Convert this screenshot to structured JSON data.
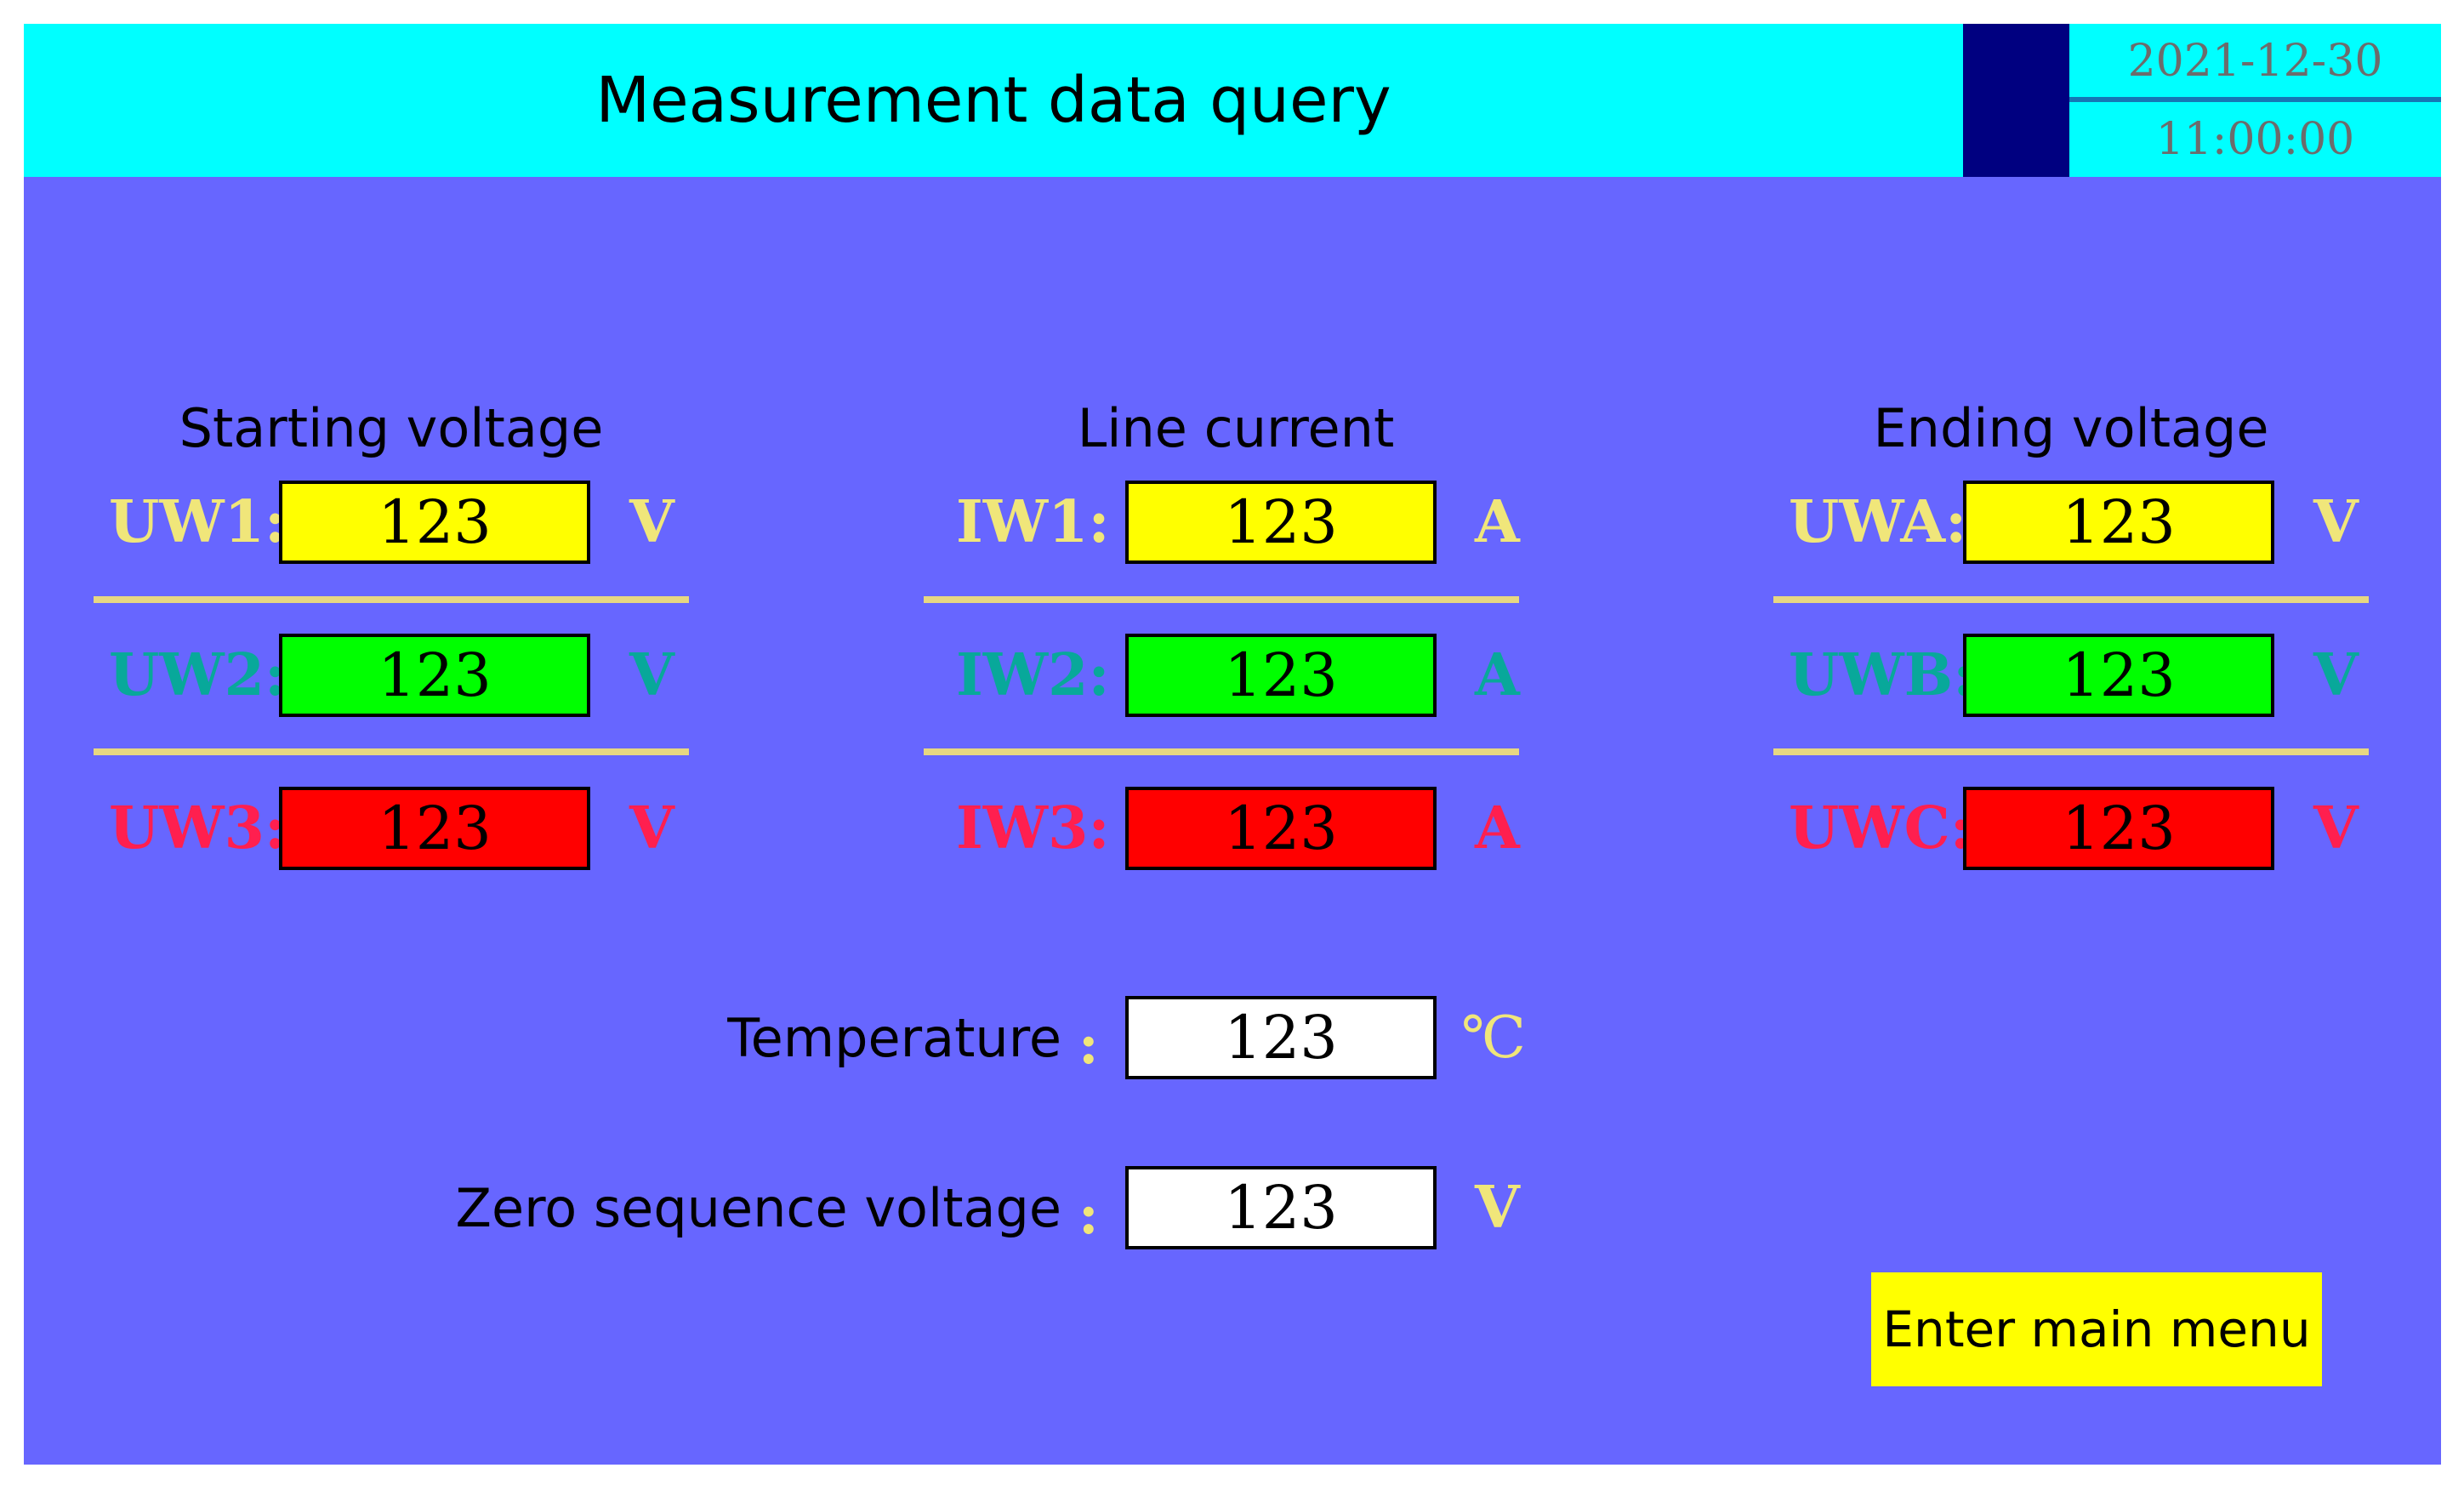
{
  "header": {
    "title": "Measurement data query",
    "date": "2021-12-30",
    "time": "11:00:00"
  },
  "groups": [
    {
      "title": "Starting voltage",
      "rows": [
        {
          "label": "UW1:",
          "value": "123",
          "unit": "V",
          "color": "yellow"
        },
        {
          "label": "UW2:",
          "value": "123",
          "unit": "V",
          "color": "green"
        },
        {
          "label": "UW3:",
          "value": "123",
          "unit": "V",
          "color": "red"
        }
      ]
    },
    {
      "title": "Line current",
      "rows": [
        {
          "label": "IW1:",
          "value": "123",
          "unit": "A",
          "color": "yellow"
        },
        {
          "label": "IW2:",
          "value": "123",
          "unit": "A",
          "color": "green"
        },
        {
          "label": "IW3:",
          "value": "123",
          "unit": "A",
          "color": "red"
        }
      ]
    },
    {
      "title": "Ending voltage",
      "rows": [
        {
          "label": "UWA:",
          "value": "123",
          "unit": "V",
          "color": "yellow"
        },
        {
          "label": "UWB:",
          "value": "123",
          "unit": "V",
          "color": "green"
        },
        {
          "label": "UWC:",
          "value": "123",
          "unit": "V",
          "color": "red"
        }
      ]
    }
  ],
  "temperature": {
    "label": "Temperature",
    "separator": ":",
    "value": "123",
    "unit": "℃"
  },
  "zero_sequence": {
    "label": "Zero sequence voltage",
    "separator": ":",
    "value": "123",
    "unit": "V"
  },
  "main_menu_button": {
    "label": "Enter main menu"
  },
  "colors": {
    "background": "#6766ff",
    "header": "#00ffff",
    "yellow": "#ffff00",
    "green": "#00ff00",
    "red": "#ff0000"
  }
}
